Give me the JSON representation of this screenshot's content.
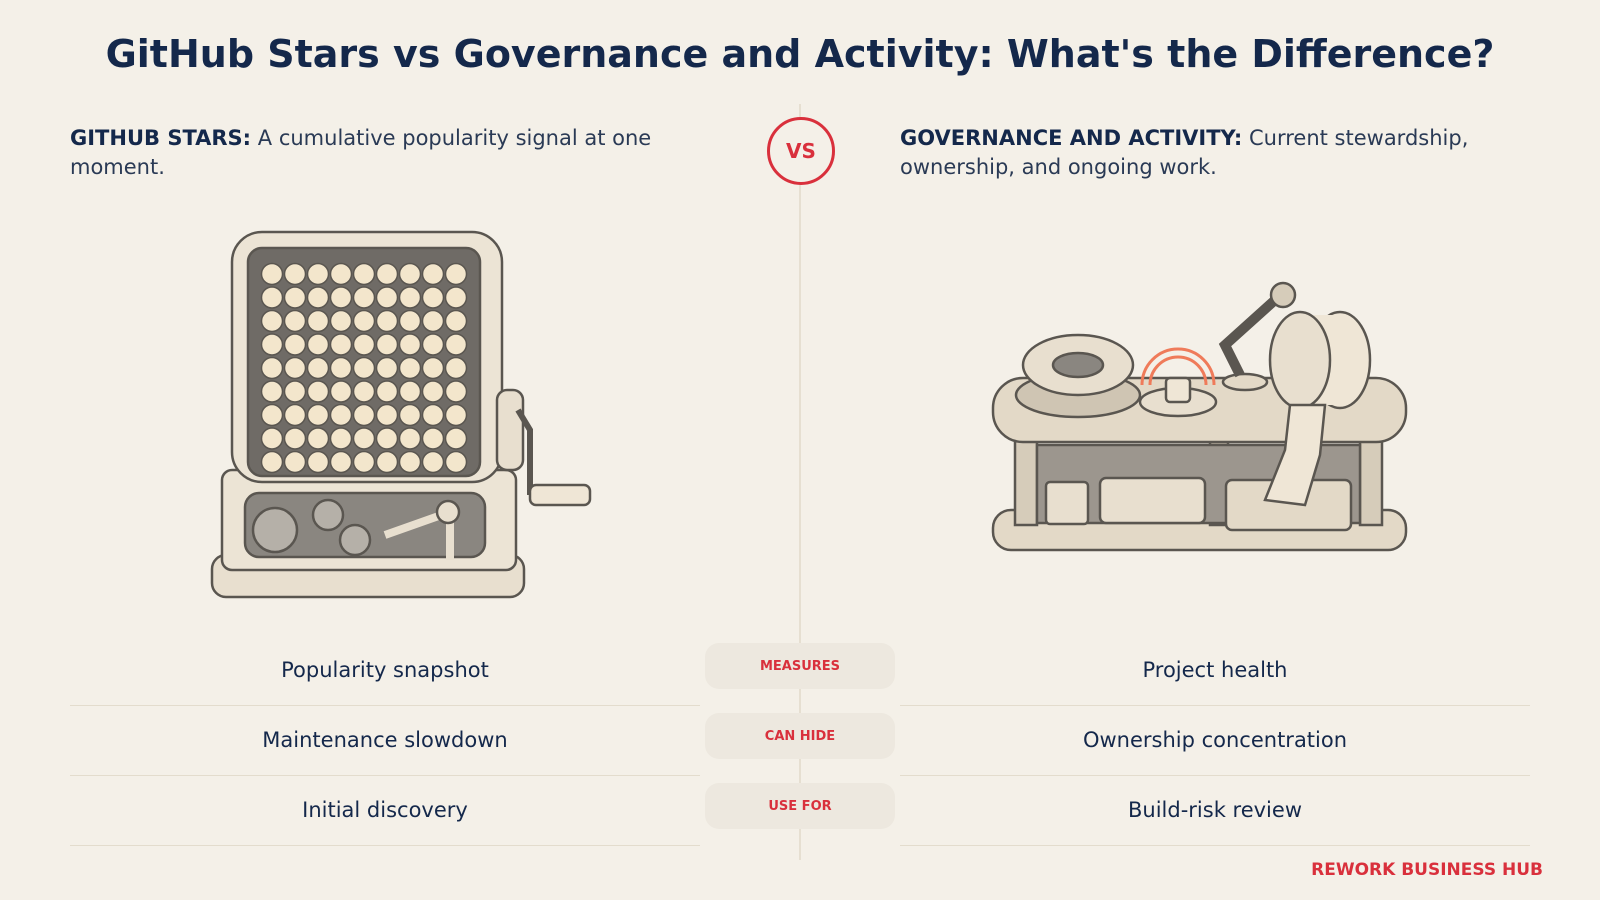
{
  "title": "GitHub Stars vs Governance and Activity: What's the Difference?",
  "left": {
    "label": "GITHUB STARS:",
    "description": "A cumulative popularity signal at one moment."
  },
  "vs": "VS",
  "right": {
    "label": "GOVERNANCE AND ACTIVITY:",
    "description": "Current stewardship, ownership, and ongoing work."
  },
  "rows": [
    {
      "left": "Popularity snapshot",
      "middle": "MEASURES",
      "right": "Project health"
    },
    {
      "left": "Maintenance slowdown",
      "middle": "CAN HIDE",
      "right": "Ownership concentration"
    },
    {
      "left": "Initial discovery",
      "middle": "USE FOR",
      "right": "Build-risk review"
    }
  ],
  "brand": "REWORK BUSINESS HUB"
}
